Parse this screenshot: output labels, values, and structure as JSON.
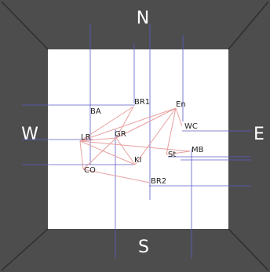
{
  "compass": {
    "north": "N",
    "south": "S",
    "west": "W",
    "east": "E"
  },
  "colors": {
    "frame": "#4d4d4d",
    "frame_bevel": "#2e2e2e",
    "panel": "#ffffff",
    "guide_line": "#5c5cc8",
    "edge": "#e8a0a0",
    "label": "#222222"
  },
  "nodes": [
    {
      "id": "BA",
      "label": "BA"
    },
    {
      "id": "BR1",
      "label": "BR1"
    },
    {
      "id": "En",
      "label": "En"
    },
    {
      "id": "WC",
      "label": "WC"
    },
    {
      "id": "LR",
      "label": "LR"
    },
    {
      "id": "GR",
      "label": "GR"
    },
    {
      "id": "MB",
      "label": "MB"
    },
    {
      "id": "St",
      "label": "St"
    },
    {
      "id": "KI",
      "label": "KI"
    },
    {
      "id": "CO",
      "label": "CO"
    },
    {
      "id": "BR2",
      "label": "BR2"
    }
  ],
  "edges": [
    [
      "BR1",
      "GR"
    ],
    [
      "BR1",
      "LR"
    ],
    [
      "En",
      "GR"
    ],
    [
      "En",
      "LR"
    ],
    [
      "En",
      "KI"
    ],
    [
      "En",
      "St"
    ],
    [
      "En",
      "WC"
    ],
    [
      "LR",
      "GR"
    ],
    [
      "LR",
      "CO"
    ],
    [
      "LR",
      "MB"
    ],
    [
      "LR",
      "KI"
    ],
    [
      "GR",
      "KI"
    ],
    [
      "GR",
      "CO"
    ],
    [
      "CO",
      "BR2"
    ],
    [
      "MB",
      "St"
    ]
  ]
}
